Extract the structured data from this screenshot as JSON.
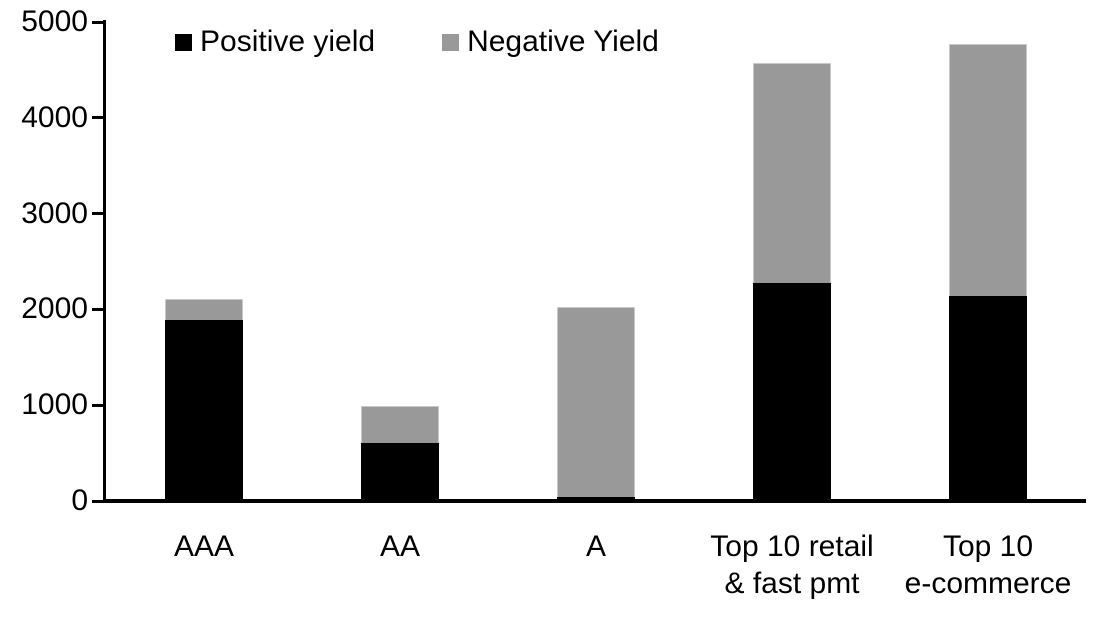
{
  "figure": {
    "background": "#ffffff",
    "axis_color": "#000000"
  },
  "chart_data": {
    "type": "bar",
    "stacked": true,
    "title": "",
    "xlabel": "",
    "ylabel": "",
    "categories": [
      "AAA",
      "AA",
      "A",
      "Top 10 retail\n& fast pmt",
      "Top 10\ne-commerce"
    ],
    "series": [
      {
        "name": "Positive yield",
        "color": "#000000",
        "values": [
          1890,
          610,
          40,
          2280,
          2140
        ]
      },
      {
        "name": "Negative Yield",
        "color": "#999999",
        "values": [
          220,
          385,
          1990,
          2290,
          2630
        ]
      }
    ],
    "totals": [
      2110,
      995,
      2030,
      4570,
      4770
    ],
    "ylim": [
      0,
      5000
    ],
    "yticks": [
      0,
      1000,
      2000,
      3000,
      4000,
      5000
    ],
    "grid": false,
    "legend_position": "top"
  }
}
